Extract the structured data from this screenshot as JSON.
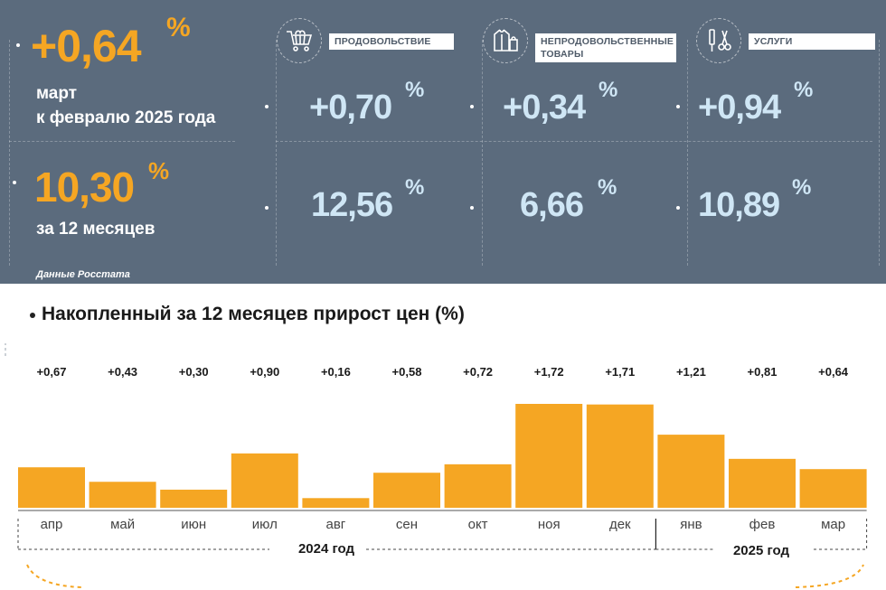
{
  "headline": {
    "monthly_value": "+0,64",
    "pct_sign": "%",
    "monthly_caption_line1": "март",
    "monthly_caption_line2": "к февралю 2025 года",
    "annual_value": "10,30",
    "annual_caption": "за 12 месяцев"
  },
  "categories": [
    {
      "icon": "shopping-cart-icon",
      "label": "ПРОДОВОЛЬСТВИЕ",
      "label_line2": "",
      "monthly": "+0,70",
      "annual": "12,56"
    },
    {
      "icon": "clothing-icon",
      "label": "НЕПРОДОВОЛЬСТВЕННЫЕ",
      "label_line2": "ТОВАРЫ",
      "monthly": "+0,34",
      "annual": "6,66"
    },
    {
      "icon": "tools-icon",
      "label": "УСЛУГИ",
      "label_line2": "",
      "monthly": "+0,94",
      "annual": "10,89"
    }
  ],
  "source": "Данные Росстата",
  "colors": {
    "panel": "#5b6b7d",
    "accent": "#f5a623",
    "value_light": "#cfe6f5"
  },
  "chart_data": {
    "type": "bar",
    "title": "Накопленный за 12 месяцев прирост цен (%)",
    "categories": [
      "апр",
      "май",
      "июн",
      "июл",
      "авг",
      "сен",
      "окт",
      "ноя",
      "дек",
      "янв",
      "фев",
      "мар"
    ],
    "values": [
      0.67,
      0.43,
      0.3,
      0.9,
      0.16,
      0.58,
      0.72,
      1.72,
      1.71,
      1.21,
      0.81,
      0.64
    ],
    "value_labels": [
      "+0,67",
      "+0,43",
      "+0,30",
      "+0,90",
      "+0,16",
      "+0,58",
      "+0,72",
      "+1,72",
      "+1,71",
      "+1,21",
      "+0,81",
      "+0,64"
    ],
    "year_groups": [
      {
        "label": "2024 год",
        "count": 9
      },
      {
        "label": "2025 год",
        "count": 3
      }
    ],
    "bar_color": "#f5a623",
    "grid": false
  }
}
